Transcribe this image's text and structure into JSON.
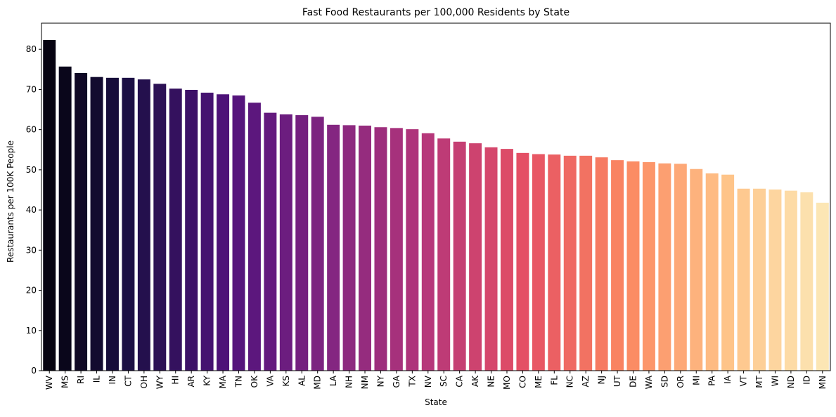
{
  "chart_data": {
    "type": "bar",
    "title": "Fast Food Restaurants per 100,000 Residents by State",
    "xlabel": "State",
    "ylabel": "Restaurants per 100K People",
    "ylim": [
      0,
      86.5
    ],
    "yticks": [
      0,
      10,
      20,
      30,
      40,
      50,
      60,
      70,
      80
    ],
    "grid": false,
    "legend": "none",
    "palette": "magma",
    "categories": [
      "WV",
      "MS",
      "RI",
      "IL",
      "IN",
      "CT",
      "OH",
      "WY",
      "HI",
      "AR",
      "KY",
      "MA",
      "TN",
      "OK",
      "VA",
      "KS",
      "AL",
      "MD",
      "LA",
      "NH",
      "NM",
      "NY",
      "GA",
      "TX",
      "NV",
      "SC",
      "CA",
      "AK",
      "NE",
      "MO",
      "CO",
      "ME",
      "FL",
      "NC",
      "AZ",
      "NJ",
      "UT",
      "DE",
      "WA",
      "SD",
      "OR",
      "MI",
      "PA",
      "IA",
      "VT",
      "MT",
      "WI",
      "ND",
      "ID",
      "MN"
    ],
    "values": [
      82.3,
      75.7,
      74.1,
      73.1,
      72.9,
      72.9,
      72.5,
      71.4,
      70.2,
      69.9,
      69.2,
      68.8,
      68.5,
      66.7,
      64.2,
      63.8,
      63.6,
      63.2,
      61.2,
      61.1,
      61.0,
      60.6,
      60.4,
      60.1,
      59.1,
      57.8,
      57.0,
      56.6,
      55.6,
      55.2,
      54.2,
      53.9,
      53.8,
      53.5,
      53.5,
      53.1,
      52.4,
      52.1,
      51.9,
      51.6,
      51.5,
      50.2,
      49.1,
      48.8,
      45.3,
      45.3,
      45.1,
      44.8,
      44.4,
      41.8
    ]
  }
}
